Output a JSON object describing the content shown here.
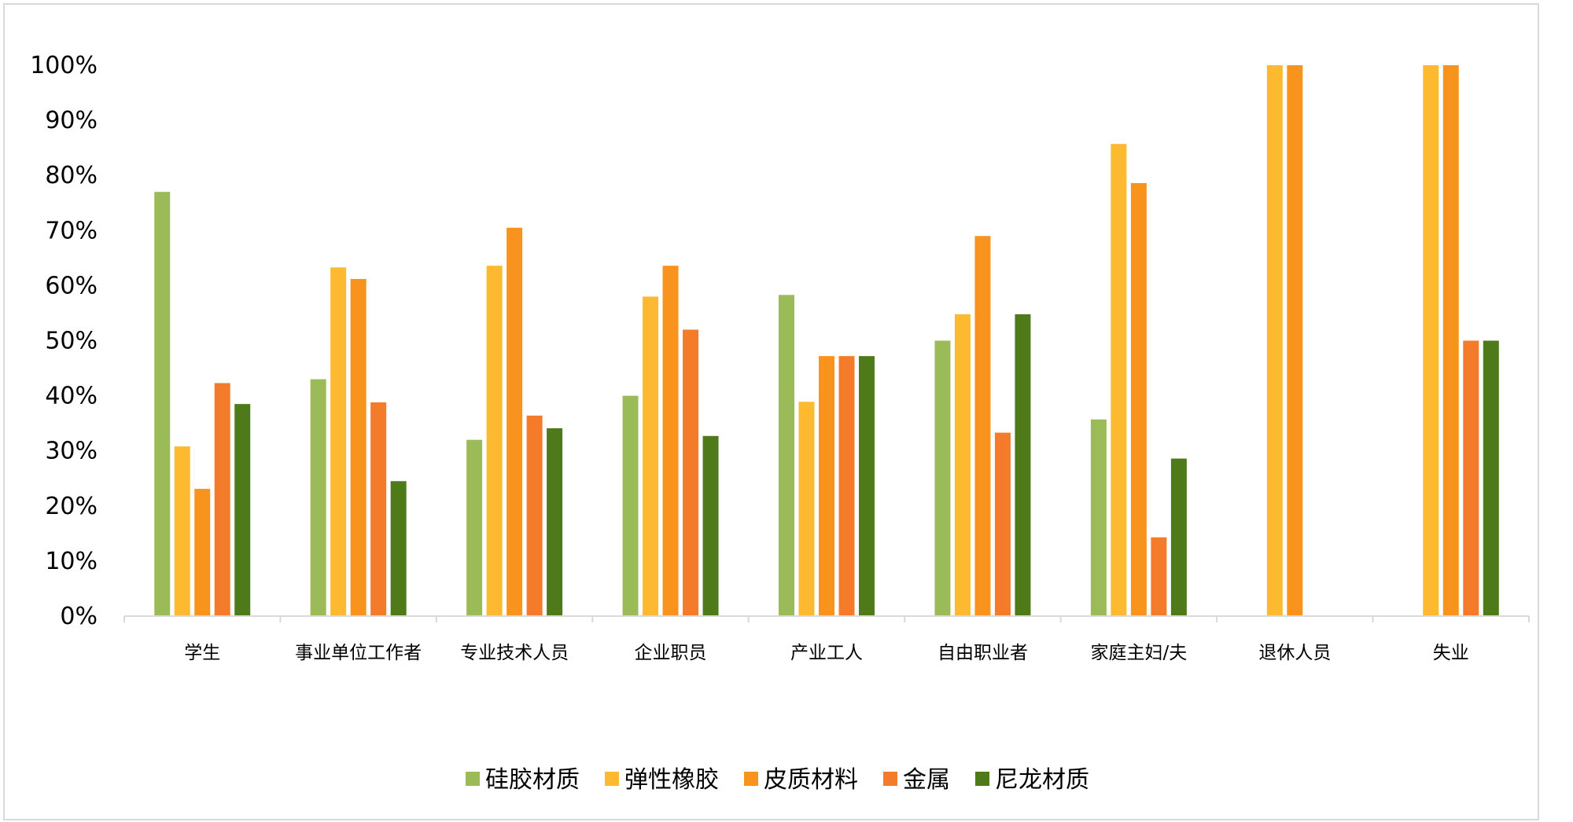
{
  "chart_data": {
    "type": "bar",
    "title": "",
    "xlabel": "",
    "ylabel": "",
    "ylim": [
      0,
      100
    ],
    "y_ticks": [
      "0%",
      "10%",
      "20%",
      "30%",
      "40%",
      "50%",
      "60%",
      "70%",
      "80%",
      "90%",
      "100%"
    ],
    "legend_position": "bottom",
    "grid": false,
    "categories": [
      "学生",
      "事业单位工作者",
      "专业技术人员",
      "企业职员",
      "产业工人",
      "自由职业者",
      "家庭主妇/夫",
      "退休人员",
      "失业"
    ],
    "series": [
      {
        "name": "硅胶材质",
        "color": "#9bbb59",
        "values": [
          77,
          43,
          32,
          40,
          58.3,
          50,
          35.7,
          0,
          0
        ]
      },
      {
        "name": "弹性橡胶",
        "color": "#fdb92f",
        "values": [
          30.8,
          63.3,
          63.6,
          58,
          38.9,
          54.8,
          85.7,
          100,
          100
        ]
      },
      {
        "name": "皮质材料",
        "color": "#f8941d",
        "values": [
          23.1,
          61.2,
          70.5,
          63.6,
          47.2,
          69,
          78.6,
          100,
          100
        ]
      },
      {
        "name": "金属",
        "color": "#f47b29",
        "values": [
          42.3,
          38.8,
          36.4,
          52,
          47.2,
          33.3,
          14.3,
          0,
          50
        ]
      },
      {
        "name": "尼龙材质",
        "color": "#4e7a1a",
        "values": [
          38.5,
          24.5,
          34.1,
          32.7,
          47.2,
          54.8,
          28.6,
          0,
          50
        ]
      }
    ]
  }
}
